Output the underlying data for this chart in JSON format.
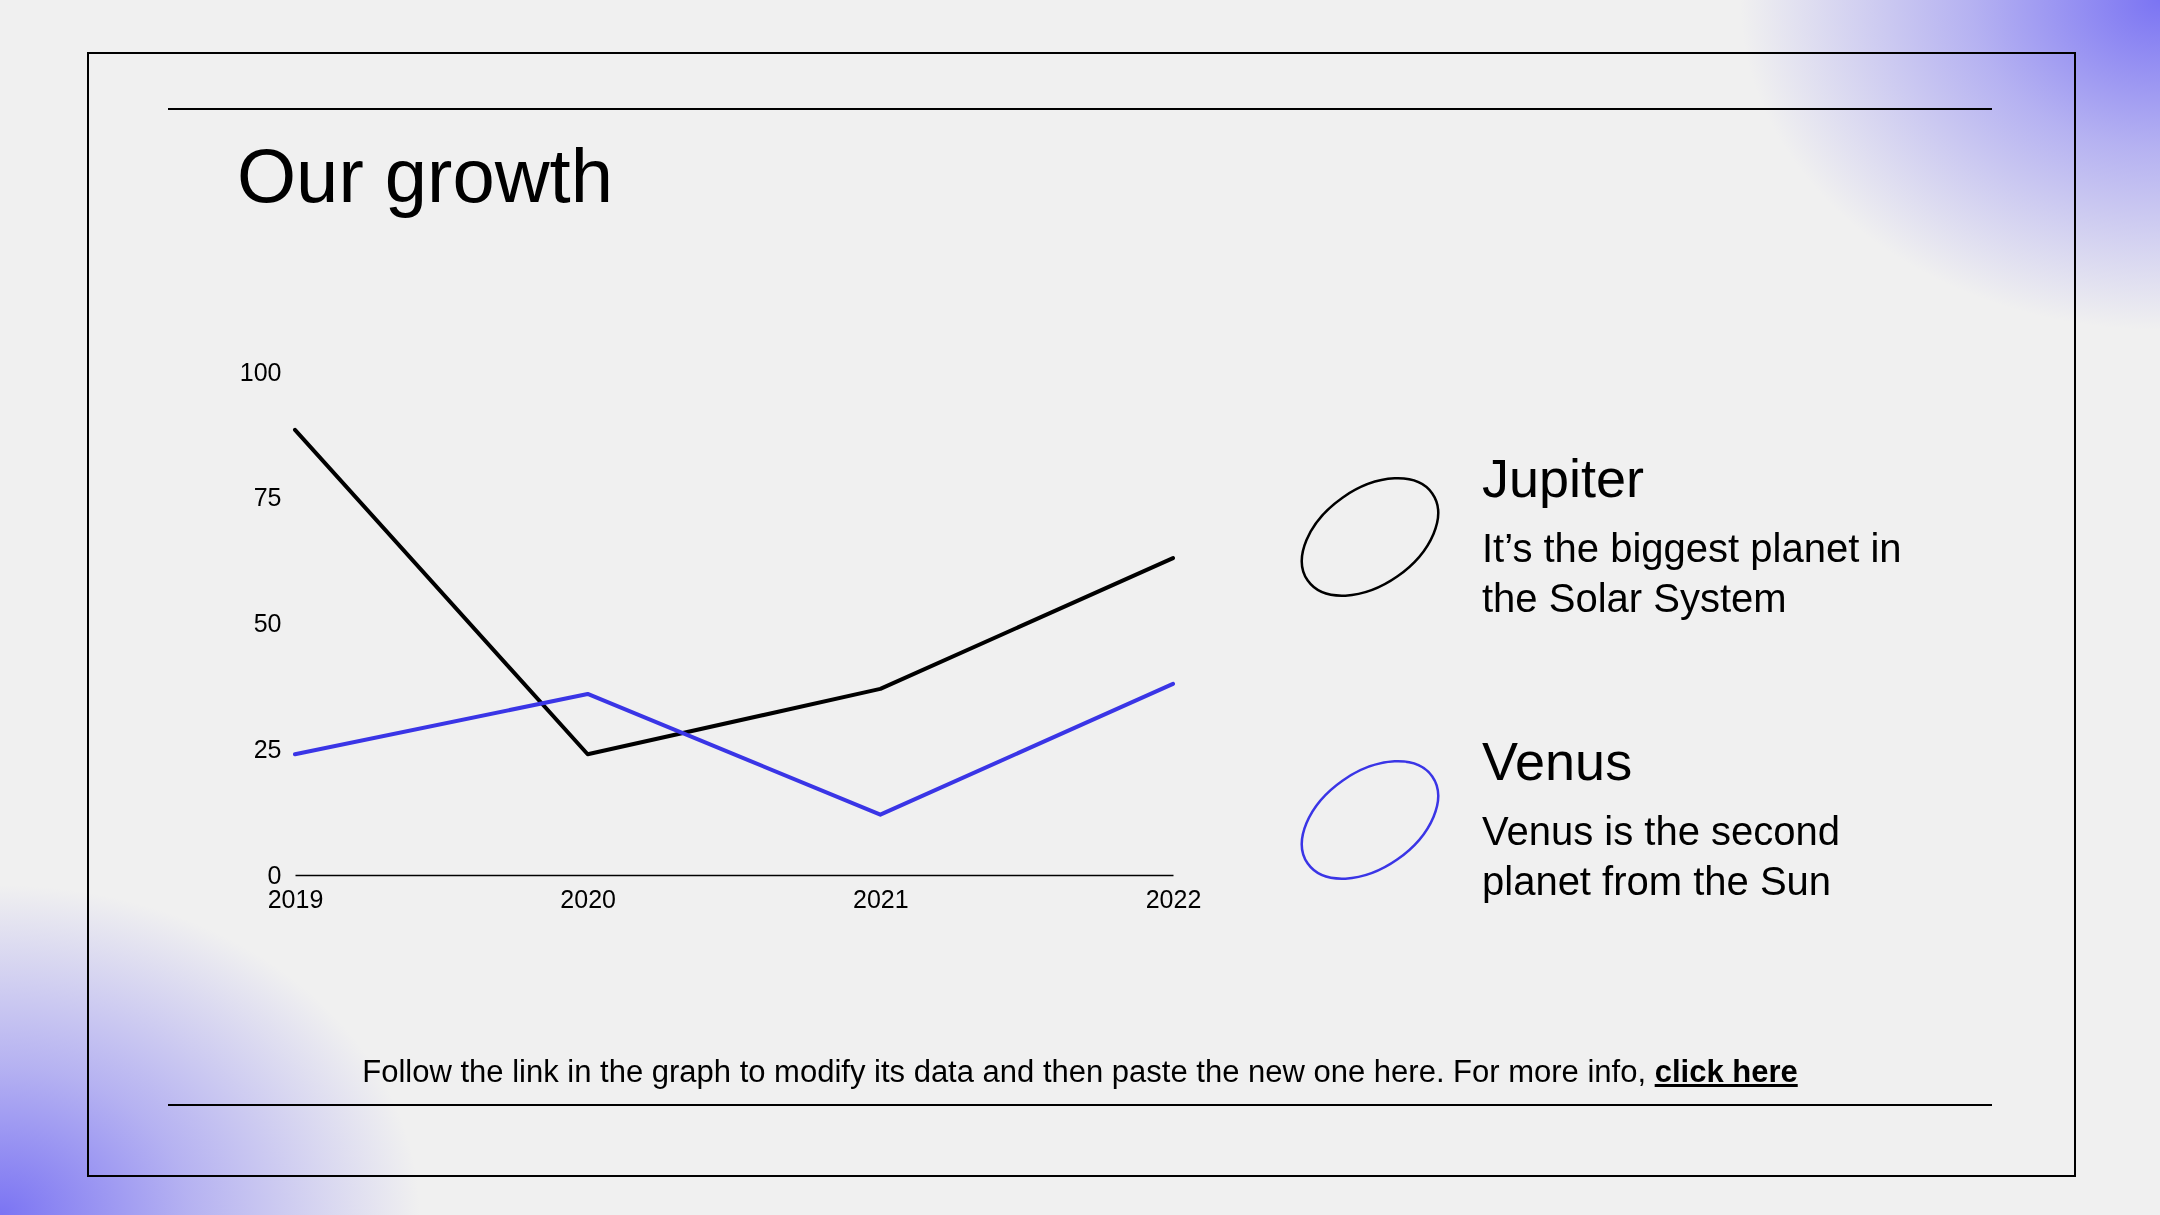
{
  "chart_data": {
    "type": "line",
    "title": "Our growth",
    "categories": [
      "2019",
      "2020",
      "2021",
      "2022"
    ],
    "series": [
      {
        "name": "Jupiter",
        "color": "#000000",
        "values": [
          88.5,
          24,
          37,
          63
        ]
      },
      {
        "name": "Venus",
        "color": "#3a35e6",
        "values": [
          24,
          36,
          12,
          38
        ]
      }
    ],
    "ylim": [
      0,
      100
    ],
    "yticks": [
      0,
      25,
      50,
      75,
      100
    ],
    "legend": "right",
    "annotations": [
      "It’s the biggest planet in the Solar System",
      "Venus is the second planet from the Sun",
      "Follow the link in the graph to modify its data and then paste the new one here. For more info,",
      "click here"
    ]
  }
}
